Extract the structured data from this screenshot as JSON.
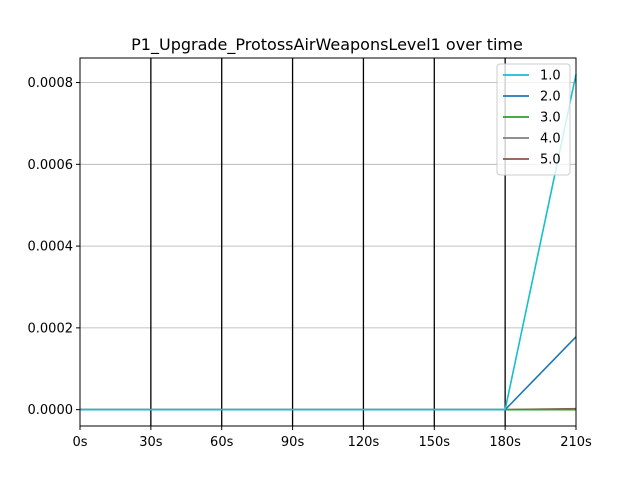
{
  "chart_data": {
    "type": "line",
    "title": "P1_Upgrade_ProtossAirWeaponsLevel1 over time",
    "xlabel": "",
    "ylabel": "",
    "x": [
      0,
      30,
      60,
      90,
      120,
      150,
      180,
      210
    ],
    "x_tick_labels": [
      "0s",
      "30s",
      "60s",
      "90s",
      "120s",
      "150s",
      "180s",
      "210s"
    ],
    "xlim": [
      0,
      210
    ],
    "ylim": [
      -4e-05,
      0.00086
    ],
    "y_ticks": [
      0,
      0.0002,
      0.0004,
      0.0006,
      0.0008
    ],
    "y_tick_labels": [
      "0.0000",
      "0.0002",
      "0.0004",
      "0.0006",
      "0.0008"
    ],
    "grid": {
      "horizontal": true,
      "vertical_lines_at": [
        30,
        60,
        90,
        120,
        150,
        180
      ]
    },
    "legend_position": "top-right",
    "series": [
      {
        "name": "1.0",
        "color": "#17becf",
        "values": [
          0,
          0,
          0,
          0,
          0,
          0,
          0,
          0.00082
        ]
      },
      {
        "name": "2.0",
        "color": "#1f77b4",
        "values": [
          0,
          0,
          0,
          0,
          0,
          0,
          0,
          0.000178
        ]
      },
      {
        "name": "3.0",
        "color": "#2ca02c",
        "values": [
          0,
          0,
          0,
          0,
          0,
          0,
          0,
          0
        ]
      },
      {
        "name": "4.0",
        "color": "#7f7f7f",
        "values": [
          0,
          0,
          0,
          0,
          0,
          0,
          0,
          0
        ]
      },
      {
        "name": "5.0",
        "color": "#8c564b",
        "values": [
          0,
          0,
          0,
          0,
          0,
          0,
          0,
          2.5e-06
        ]
      }
    ]
  }
}
